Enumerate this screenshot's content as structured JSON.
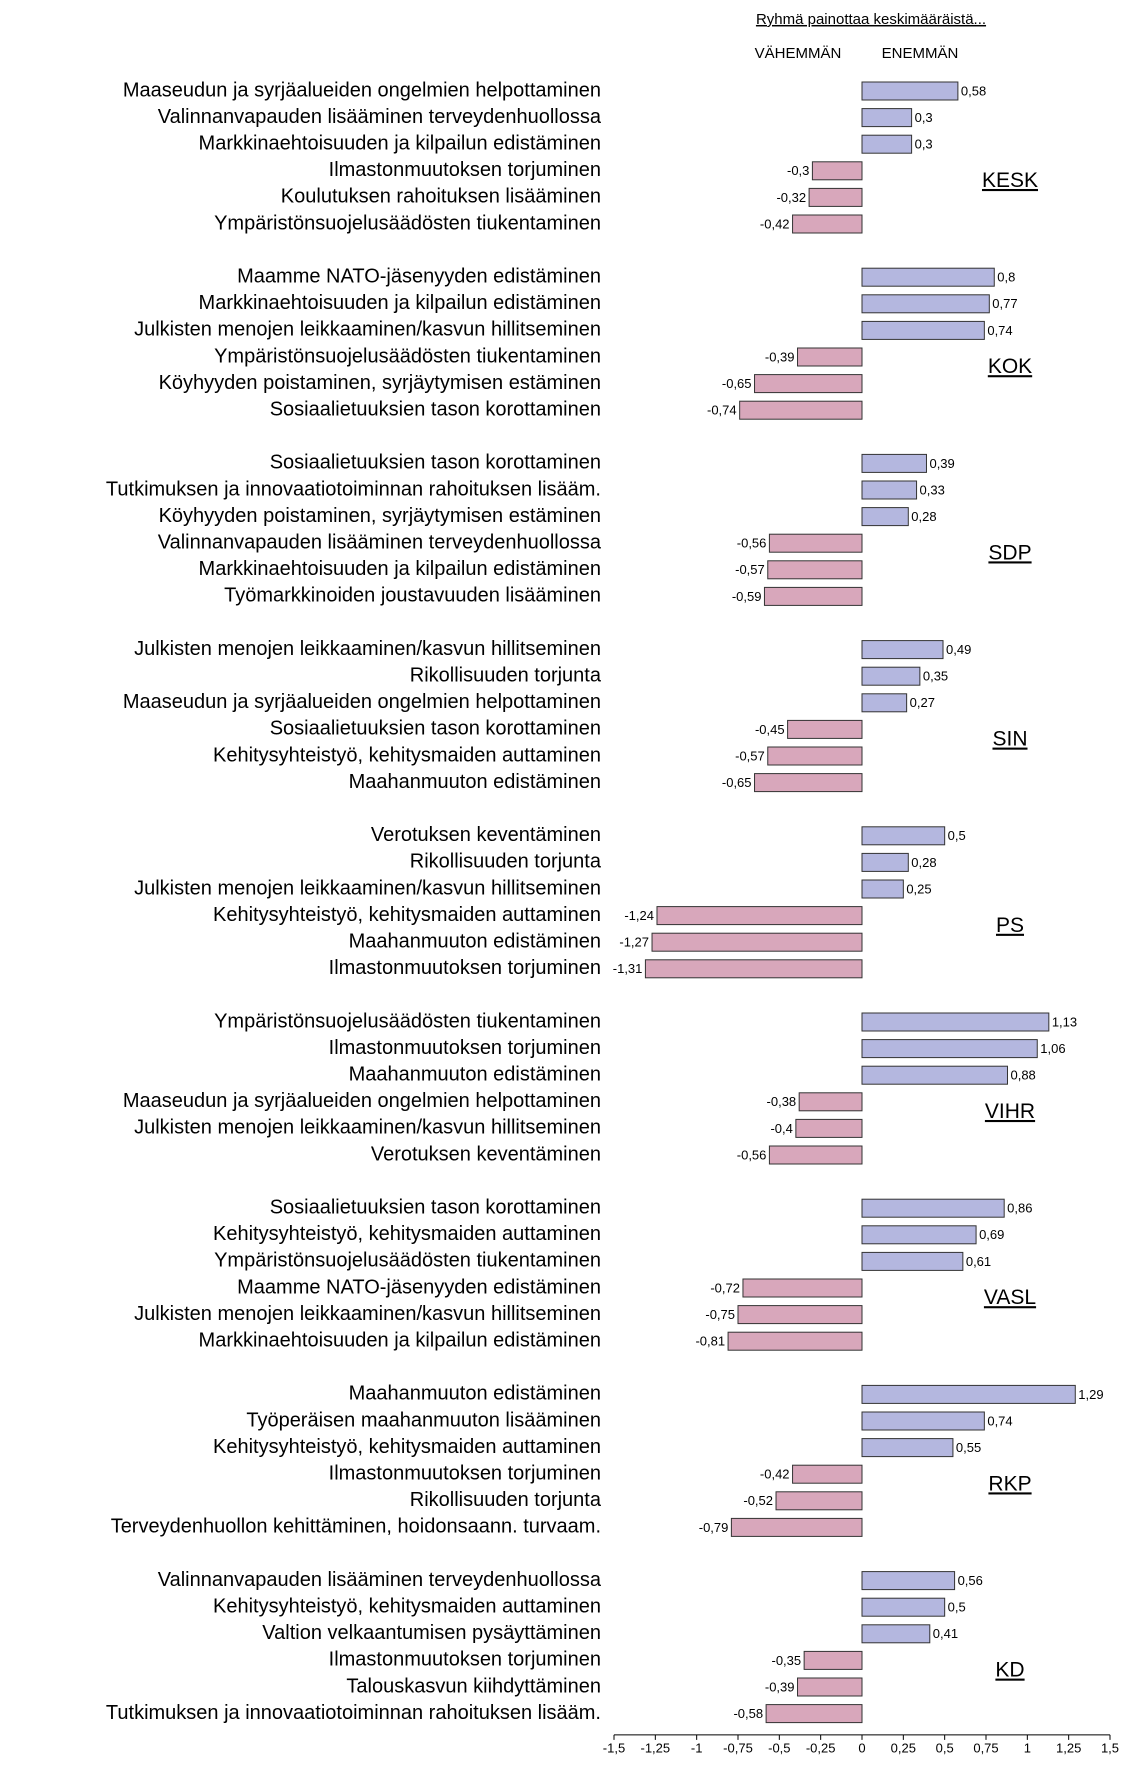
{
  "chart_data": {
    "type": "bar",
    "orientation": "horizontal",
    "title": "Ryhmä painottaa keskimääräistä...",
    "negative_label": "VÄHEMMÄN",
    "positive_label": "ENEMMÄN",
    "positive_color": "#b4b7df",
    "negative_color": "#d8a7bb",
    "xlim": [
      -1.5,
      1.5
    ],
    "xticks": [
      {
        "value": -1.5,
        "label": "-1,5"
      },
      {
        "value": -1.25,
        "label": "-1,25"
      },
      -1,
      {
        "value": -0.75,
        "label": "-0,75"
      },
      {
        "value": -0.5,
        "label": "-0,5"
      },
      {
        "value": -0.25,
        "label": "-0,25"
      },
      0,
      {
        "value": 0.25,
        "label": "0,25"
      },
      {
        "value": 0.5,
        "label": "0,5"
      },
      {
        "value": 0.75,
        "label": "0,75"
      },
      1,
      {
        "value": 1.25,
        "label": "1,25"
      },
      {
        "value": 1.5,
        "label": "1,5"
      }
    ],
    "groups": [
      {
        "name": "KESK",
        "categories": [
          "Maaseudun ja syrjäalueiden ongelmien helpottaminen",
          "Valinnanvapauden lisääminen terveydenhuollossa",
          "Markkinaehtoisuuden ja kilpailun edistäminen",
          "Ilmastonmuutoksen torjuminen",
          "Koulutuksen rahoituksen lisääminen",
          "Ympäristönsuojelusäädösten tiukentaminen"
        ],
        "values": [
          0.58,
          0.3,
          0.3,
          -0.3,
          -0.32,
          -0.42
        ],
        "value_labels": [
          "0,58",
          "0,3",
          "0,3",
          "-0,3",
          "-0,32",
          "-0,42"
        ]
      },
      {
        "name": "KOK",
        "categories": [
          "Maamme NATO-jäsenyyden edistäminen",
          "Markkinaehtoisuuden ja kilpailun edistäminen",
          "Julkisten menojen leikkaaminen/kasvun hillitseminen",
          "Ympäristönsuojelusäädösten tiukentaminen",
          "Köyhyyden poistaminen, syrjäytymisen estäminen",
          "Sosiaalietuuksien tason korottaminen"
        ],
        "values": [
          0.8,
          0.77,
          0.74,
          -0.39,
          -0.65,
          -0.74
        ],
        "value_labels": [
          "0,8",
          "0,77",
          "0,74",
          "-0,39",
          "-0,65",
          "-0,74"
        ]
      },
      {
        "name": "SDP",
        "categories": [
          "Sosiaalietuuksien tason korottaminen",
          "Tutkimuksen ja innovaatiotoiminnan rahoituksen lisääm.",
          "Köyhyyden poistaminen, syrjäytymisen estäminen",
          "Valinnanvapauden lisääminen terveydenhuollossa",
          "Markkinaehtoisuuden ja kilpailun edistäminen",
          "Työmarkkinoiden joustavuuden lisääminen"
        ],
        "values": [
          0.39,
          0.33,
          0.28,
          -0.56,
          -0.57,
          -0.59
        ],
        "value_labels": [
          "0,39",
          "0,33",
          "0,28",
          "-0,56",
          "-0,57",
          "-0,59"
        ]
      },
      {
        "name": "SIN",
        "categories": [
          "Julkisten menojen leikkaaminen/kasvun hillitseminen",
          "Rikollisuuden torjunta",
          "Maaseudun ja syrjäalueiden ongelmien helpottaminen",
          "Sosiaalietuuksien tason korottaminen",
          "Kehitysyhteistyö, kehitysmaiden auttaminen",
          "Maahanmuuton edistäminen"
        ],
        "values": [
          0.49,
          0.35,
          0.27,
          -0.45,
          -0.57,
          -0.65
        ],
        "value_labels": [
          "0,49",
          "0,35",
          "0,27",
          "-0,45",
          "-0,57",
          "-0,65"
        ]
      },
      {
        "name": "PS",
        "categories": [
          "Verotuksen keventäminen",
          "Rikollisuuden torjunta",
          "Julkisten menojen leikkaaminen/kasvun hillitseminen",
          "Kehitysyhteistyö, kehitysmaiden auttaminen",
          "Maahanmuuton edistäminen",
          "Ilmastonmuutoksen torjuminen"
        ],
        "values": [
          0.5,
          0.28,
          0.25,
          -1.24,
          -1.27,
          -1.31
        ],
        "value_labels": [
          "0,5",
          "0,28",
          "0,25",
          "-1,24",
          "-1,27",
          "-1,31"
        ]
      },
      {
        "name": "VIHR",
        "categories": [
          "Ympäristönsuojelusäädösten tiukentaminen",
          "Ilmastonmuutoksen torjuminen",
          "Maahanmuuton edistäminen",
          "Maaseudun ja syrjäalueiden ongelmien helpottaminen",
          "Julkisten menojen leikkaaminen/kasvun hillitseminen",
          "Verotuksen keventäminen"
        ],
        "values": [
          1.13,
          1.06,
          0.88,
          -0.38,
          -0.4,
          -0.56
        ],
        "value_labels": [
          "1,13",
          "1,06",
          "0,88",
          "-0,38",
          "-0,4",
          "-0,56"
        ]
      },
      {
        "name": "VASL",
        "categories": [
          "Sosiaalietuuksien tason korottaminen",
          "Kehitysyhteistyö, kehitysmaiden auttaminen",
          "Ympäristönsuojelusäädösten tiukentaminen",
          "Maamme NATO-jäsenyyden edistäminen",
          "Julkisten menojen leikkaaminen/kasvun hillitseminen",
          "Markkinaehtoisuuden ja kilpailun edistäminen"
        ],
        "values": [
          0.86,
          0.69,
          0.61,
          -0.72,
          -0.75,
          -0.81
        ],
        "value_labels": [
          "0,86",
          "0,69",
          "0,61",
          "-0,72",
          "-0,75",
          "-0,81"
        ]
      },
      {
        "name": "RKP",
        "categories": [
          "Maahanmuuton edistäminen",
          "Työperäisen maahanmuuton lisääminen",
          "Kehitysyhteistyö, kehitysmaiden auttaminen",
          "Ilmastonmuutoksen torjuminen",
          "Rikollisuuden torjunta",
          "Terveydenhuollon kehittäminen, hoidonsaann. turvaam."
        ],
        "values": [
          1.29,
          0.74,
          0.55,
          -0.42,
          -0.52,
          -0.79
        ],
        "value_labels": [
          "1,29",
          "0,74",
          "0,55",
          "-0,42",
          "-0,52",
          "-0,79"
        ]
      },
      {
        "name": "KD",
        "categories": [
          "Valinnanvapauden lisääminen terveydenhuollossa",
          "Kehitysyhteistyö, kehitysmaiden auttaminen",
          "Valtion velkaantumisen pysäyttäminen",
          "Ilmastonmuutoksen torjuminen",
          "Talouskasvun kiihdyttäminen",
          "Tutkimuksen ja innovaatiotoiminnan rahoituksen lisääm."
        ],
        "values": [
          0.56,
          0.5,
          0.41,
          -0.35,
          -0.39,
          -0.58
        ],
        "value_labels": [
          "0,56",
          "0,5",
          "0,41",
          "-0,35",
          "-0,39",
          "-0,58"
        ]
      }
    ]
  }
}
